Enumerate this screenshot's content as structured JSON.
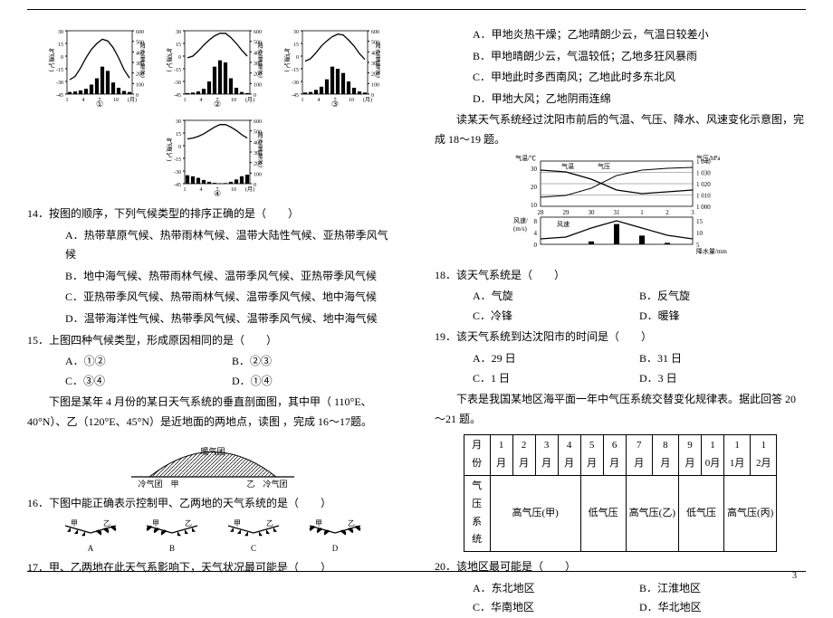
{
  "page_number": "3",
  "charts": {
    "axis_left_top": "30",
    "axis_left_labels": [
      "15",
      "0",
      "-15",
      "-30",
      "-45"
    ],
    "axis_right_labels": [
      "600",
      "500",
      "400",
      "300",
      "200",
      "100",
      "0"
    ],
    "x_labels": [
      "1",
      "4",
      "7",
      "10",
      "(月)"
    ],
    "ylab_left": "气温(℃)",
    "ylab_right": "降水量(毫米)",
    "nums": [
      "①",
      "②",
      "③",
      "④"
    ],
    "bars": {
      "1": [
        20,
        25,
        35,
        50,
        90,
        150,
        260,
        220,
        110,
        60,
        30,
        20
      ],
      "2": [
        10,
        15,
        25,
        50,
        120,
        260,
        320,
        300,
        150,
        60,
        20,
        10
      ],
      "3": [
        15,
        20,
        40,
        70,
        140,
        260,
        240,
        200,
        120,
        60,
        25,
        15
      ],
      "4": [
        80,
        70,
        55,
        35,
        18,
        8,
        4,
        6,
        18,
        40,
        70,
        85
      ]
    },
    "temp": {
      "1": [
        -28,
        -24,
        -14,
        -2,
        8,
        15,
        20,
        18,
        10,
        -2,
        -16,
        -26
      ],
      "2": [
        -2,
        0,
        6,
        13,
        19,
        24,
        27,
        27,
        22,
        15,
        7,
        0
      ],
      "3": [
        -6,
        -3,
        4,
        12,
        18,
        23,
        26,
        25,
        19,
        12,
        3,
        -4
      ],
      "4": [
        8,
        9,
        11,
        14,
        18,
        22,
        25,
        25,
        22,
        18,
        13,
        9
      ]
    }
  },
  "q14": {
    "stem": "14．按图的顺序，下列气候类型的排序正确的是（　　）",
    "A": "A．热带草原气候、热带雨林气候、温带大陆性气候、亚热带季风气候",
    "B": "B．地中海气候、热带雨林气候、温带季风气候、亚热带季风气候",
    "C": "C．亚热带季风气候、热带雨林气候、温带季风气候、地中海气候",
    "D": "D．温带海洋性气候、热带季风气候、温带季风气候、地中海气候"
  },
  "q15": {
    "stem": "15．上图四种气候类型，形成原因相同的是（　　）",
    "A": "A．①②",
    "B": "B．②③",
    "C": "C．③④",
    "D": "D．①④"
  },
  "pre16": "　　下图是某年 4 月份的某日天气系统的垂直剖面图，其中甲（ 110°E、40°N）、乙（120°E、45°N）是近地面的两地点，读图 ，完成 16～17题。",
  "front_labels": {
    "warm": "暖气团",
    "cold_l": "冷气团　甲",
    "cold_r": "乙　冷气团"
  },
  "q16": {
    "stem": "16．下图中能正确表示控制甲、乙两地的天气系统的是（　　）",
    "labels": [
      "A",
      "B",
      "C",
      "D"
    ],
    "pair": [
      "甲",
      "乙"
    ]
  },
  "q17": {
    "stem": "17．甲、乙两地在此天气系影响下，天气状况最可能是（　　）",
    "A": "A．甲地炎热干燥；乙地晴朗少云，气温日较差小",
    "B": "B．甲地晴朗少云，气温较低；乙地多狂风暴雨",
    "C": "C．甲地此时多西南风；乙地此时多东北风",
    "D": "D．甲地大风；乙地阴雨连绵"
  },
  "pre18": "　　读某天气系统经过沈阳市前后的气温、气压、降水、风速变化示意图，完成 18～19 题。",
  "shenyang": {
    "x": [
      "28",
      "29",
      "30",
      "31",
      "1",
      "2",
      "3"
    ],
    "left_lab": "气温/℃",
    "right_lab": "气压/hPa",
    "left_ticks": [
      "30",
      "20",
      "10"
    ],
    "right_ticks": [
      "1 040",
      "1 030",
      "1 020",
      "1 010",
      "1 000"
    ],
    "legend_top": [
      "气温",
      "气压"
    ],
    "bot_left": "风速/",
    "bot_left2": "(m/s)",
    "bot_left_ticks": [
      "8",
      "4",
      "0"
    ],
    "legend_bot_l": "风速",
    "legend_bot_r": "降水量/mm",
    "right_bot_ticks": [
      "15",
      "10",
      "5"
    ]
  },
  "q18": {
    "stem": "18．该天气系统是（　　）",
    "A": "A．气旋",
    "B": "B．反气旋",
    "C": "C．冷锋",
    "D": "D．暖锋"
  },
  "q19": {
    "stem": "19．该天气系统到达沈阳市的时间是（　　）",
    "A": "A．29 日",
    "B": "B．31 日",
    "C": "C．1 日",
    "D": "D．3 日"
  },
  "pre20": "　　下表是我国某地区海平面一年中气压系统交替变化规律表。据此回答 20～21 题。",
  "table": {
    "head_row": [
      "月份",
      "1月",
      "2月",
      "3月",
      "4月",
      "5月",
      "6月",
      "7月",
      "8月",
      "9月",
      "10月",
      "11月",
      "12月"
    ],
    "row_lab": "气压系统",
    "cells": [
      "高气压(甲)",
      "低气压",
      "高气压(乙)",
      "低气压",
      "高气压(丙)"
    ],
    "spans": [
      4,
      2,
      2,
      2,
      2
    ]
  },
  "q20": {
    "stem": "20．该地区最可能是（　　）",
    "A": "A．东北地区",
    "B": "B．江淮地区",
    "C": "C．华南地区",
    "D": "D．华北地区"
  }
}
